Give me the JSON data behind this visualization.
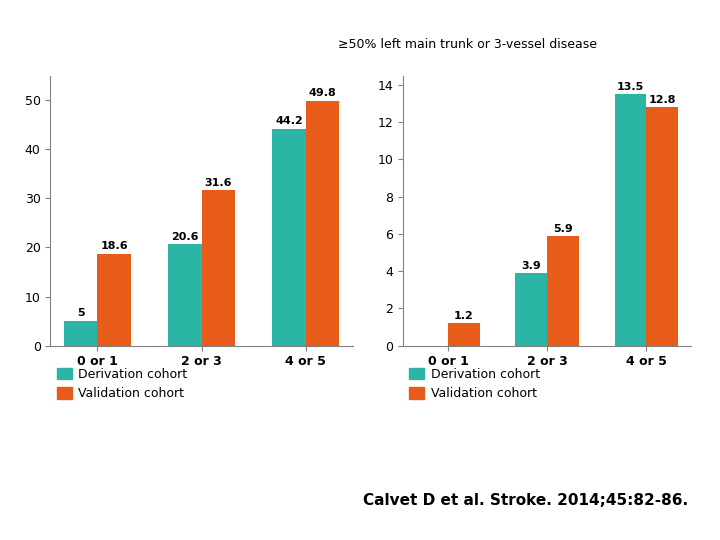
{
  "title": "≥50% left main trunk or 3-vessel disease",
  "categories": [
    "0 or 1",
    "2 or 3",
    "4 or 5"
  ],
  "left_chart": {
    "derivation": [
      5,
      20.6,
      44.2
    ],
    "validation": [
      18.6,
      31.6,
      49.8
    ],
    "ylim": [
      0,
      55
    ],
    "yticks": [
      0,
      10,
      20,
      30,
      40,
      50
    ]
  },
  "right_chart": {
    "derivation": [
      0,
      3.9,
      13.5
    ],
    "validation": [
      1.2,
      5.9,
      12.8
    ],
    "ylim": [
      0,
      14.5
    ],
    "yticks": [
      0,
      2,
      4,
      6,
      8,
      10,
      12,
      14
    ]
  },
  "colors": {
    "derivation": "#2ab5a5",
    "validation": "#e85c1a"
  },
  "legend_labels": [
    "Derivation cohort",
    "Validation cohort"
  ],
  "footer": "Calvet D et al. Stroke. 2014;45:82-86.",
  "bar_width": 0.32,
  "label_fontsize": 8,
  "tick_fontsize": 9,
  "title_fontsize": 9,
  "footer_fontsize": 11,
  "legend_fontsize": 9
}
